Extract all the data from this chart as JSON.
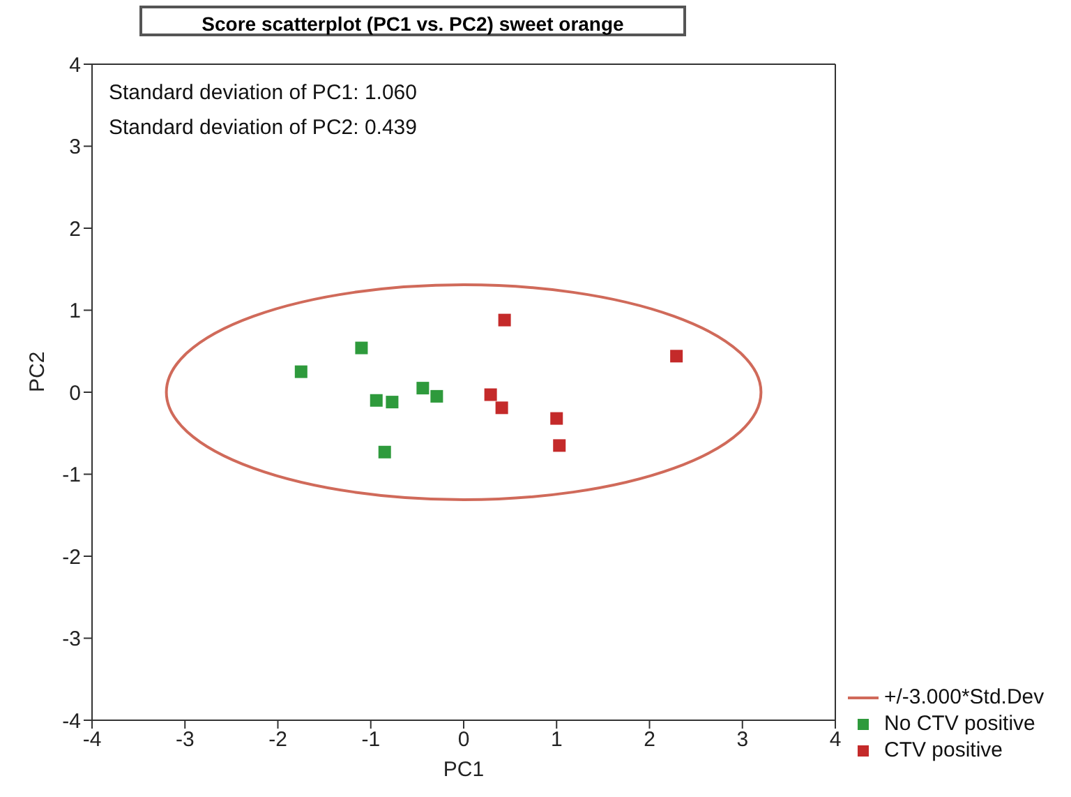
{
  "chart_data": {
    "type": "scatter",
    "title": "Score scatterplot (PC1 vs. PC2) sweet orange",
    "xlabel": "PC1",
    "ylabel": "PC2",
    "annotations": [
      "Standard deviation of PC1: 1.060",
      "Standard deviation of PC2: 0.439",
      "+/-3.000*Std.Dev"
    ],
    "xlim": [
      -4,
      4
    ],
    "xticks": [
      -4,
      -3,
      -2,
      -1,
      0,
      1,
      2,
      3,
      4
    ],
    "ylim": [
      -4,
      4
    ],
    "yticks": [
      -4,
      -3,
      -2,
      -1,
      0,
      1,
      2,
      3,
      4
    ],
    "grid": false,
    "legend": "bottom right",
    "marker": "square",
    "series": [
      {
        "name": "No CTV positive",
        "color": "#2e9a3c",
        "x": [
          -1.75,
          -1.1,
          -0.94,
          -0.77,
          -0.44,
          -0.29,
          -0.85
        ],
        "values": [
          0.25,
          0.54,
          -0.1,
          -0.12,
          0.05,
          -0.05,
          -0.73
        ]
      },
      {
        "name": "CTV positive",
        "color": "#c42a2a",
        "x": [
          0.44,
          0.29,
          0.41,
          1.0,
          1.03,
          2.29
        ],
        "values": [
          0.88,
          -0.03,
          -0.19,
          -0.32,
          -0.65,
          0.44
        ]
      }
    ]
  }
}
